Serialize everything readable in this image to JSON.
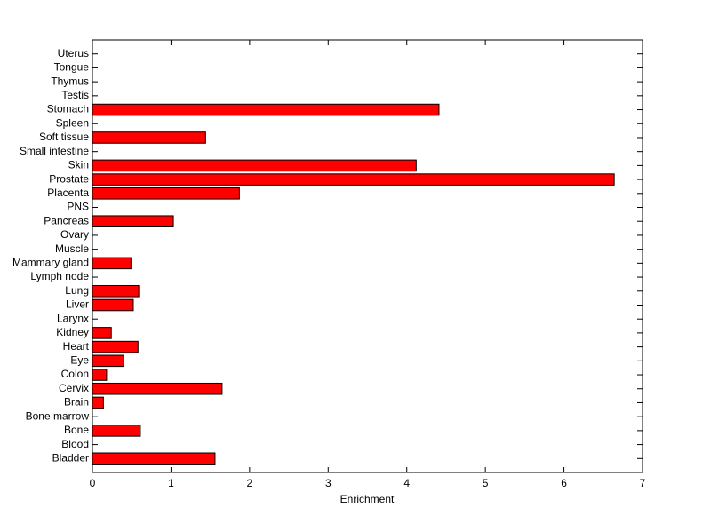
{
  "chart_data": {
    "type": "barh",
    "xlabel": "Enrichment",
    "categories": [
      "Bladder",
      "Blood",
      "Bone",
      "Bone marrow",
      "Brain",
      "Cervix",
      "Colon",
      "Eye",
      "Heart",
      "Kidney",
      "Larynx",
      "Liver",
      "Lung",
      "Lymph node",
      "Mammary gland",
      "Muscle",
      "Ovary",
      "Pancreas",
      "PNS",
      "Placenta",
      "Prostate",
      "Skin",
      "Small intestine",
      "Soft tissue",
      "Spleen",
      "Stomach",
      "Testis",
      "Thymus",
      "Tongue",
      "Uterus"
    ],
    "values": [
      1.56,
      0,
      0.61,
      0,
      0.14,
      1.65,
      0.18,
      0.4,
      0.58,
      0.24,
      0,
      0.52,
      0.59,
      0,
      0.49,
      0,
      0,
      1.03,
      0,
      1.87,
      6.64,
      4.12,
      0,
      1.44,
      0,
      4.41,
      0,
      0,
      0,
      0
    ],
    "color": "#ff0000",
    "xlim": [
      0,
      7
    ],
    "xticks": [
      0,
      1,
      2,
      3,
      4,
      5,
      6,
      7
    ]
  }
}
